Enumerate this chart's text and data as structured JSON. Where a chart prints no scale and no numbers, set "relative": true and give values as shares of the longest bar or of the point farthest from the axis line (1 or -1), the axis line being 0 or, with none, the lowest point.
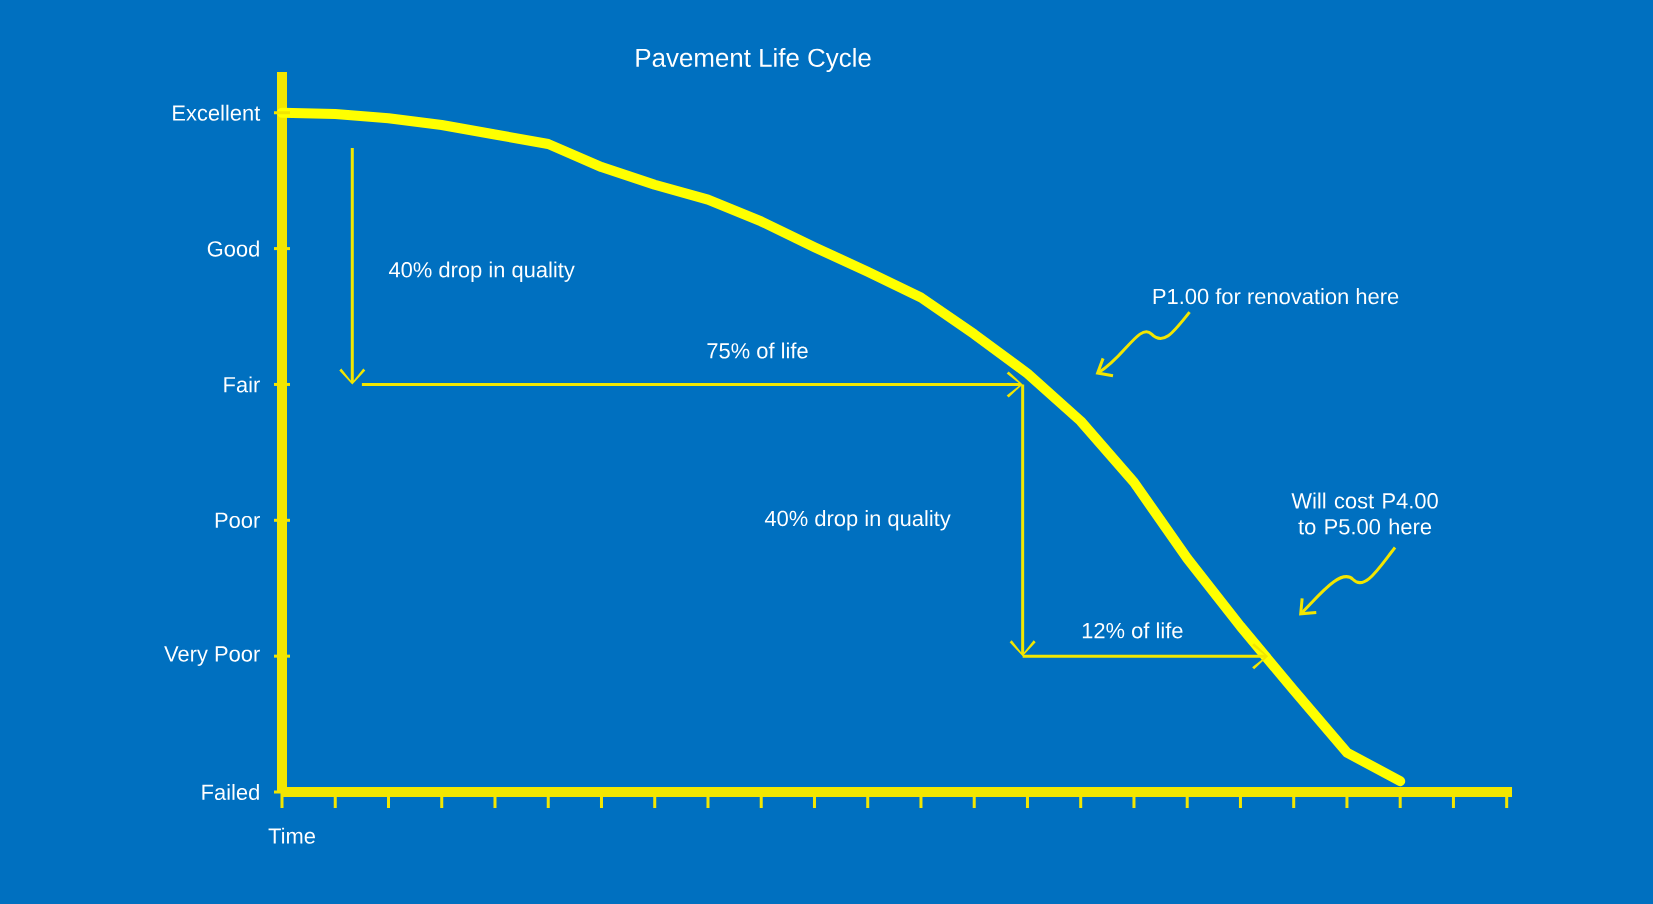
{
  "chart_data": {
    "type": "line",
    "title": "Pavement Life Cycle",
    "xlabel": "Time",
    "relative": true,
    "categories": [
      null,
      null,
      null,
      null,
      null,
      null,
      null,
      null,
      null,
      null,
      null,
      null,
      null,
      null,
      null,
      null,
      null,
      null,
      null,
      null,
      null,
      null,
      null,
      null
    ],
    "series": [
      {
        "color": "#ffff00",
        "values": [
          1.0,
          0.998,
          0.992,
          0.982,
          0.968,
          0.954,
          0.92,
          0.894,
          0.872,
          0.84,
          0.802,
          0.766,
          0.728,
          0.674,
          0.616,
          0.546,
          0.456,
          0.344,
          0.244,
          0.15,
          0.058,
          0.016,
          null,
          null
        ]
      }
    ],
    "annotations": [
      "40% drop in quality",
      "75% of life",
      "40% drop in quality",
      "12% of life",
      "P1.00 for renovation here",
      "Will cost P4.00 to P5.00 here",
      "Excellent",
      "Good",
      "Fair",
      "Poor",
      "Very Poor",
      "Failed"
    ]
  }
}
